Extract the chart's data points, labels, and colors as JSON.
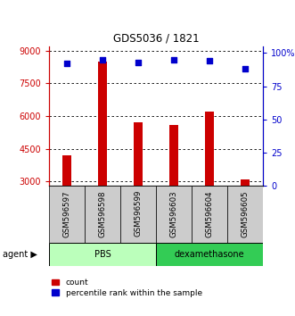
{
  "title": "GDS5036 / 1821",
  "samples": [
    "GSM596597",
    "GSM596598",
    "GSM596599",
    "GSM596603",
    "GSM596604",
    "GSM596605"
  ],
  "counts": [
    4200,
    8500,
    5700,
    5600,
    6200,
    3100
  ],
  "percentile_ranks": [
    92,
    95,
    93,
    95,
    94,
    88
  ],
  "ylim_left": [
    2800,
    9200
  ],
  "ylim_right": [
    0,
    105
  ],
  "yticks_left": [
    3000,
    4500,
    6000,
    7500,
    9000
  ],
  "yticks_right": [
    0,
    25,
    50,
    75,
    100
  ],
  "ytick_labels_left": [
    "3000",
    "4500",
    "6000",
    "7500",
    "9000"
  ],
  "ytick_labels_right": [
    "0",
    "25",
    "50",
    "75",
    "100%"
  ],
  "bar_color": "#cc0000",
  "dot_color": "#0000cc",
  "groups": [
    {
      "label": "PBS",
      "indices": [
        0,
        1,
        2
      ],
      "color": "#bbffbb"
    },
    {
      "label": "dexamethasone",
      "indices": [
        3,
        4,
        5
      ],
      "color": "#33cc55"
    }
  ],
  "agent_label": "agent",
  "legend_count_label": "count",
  "legend_pct_label": "percentile rank within the sample",
  "sample_box_color": "#cccccc",
  "left_axis_color": "#cc0000",
  "right_axis_color": "#0000cc"
}
